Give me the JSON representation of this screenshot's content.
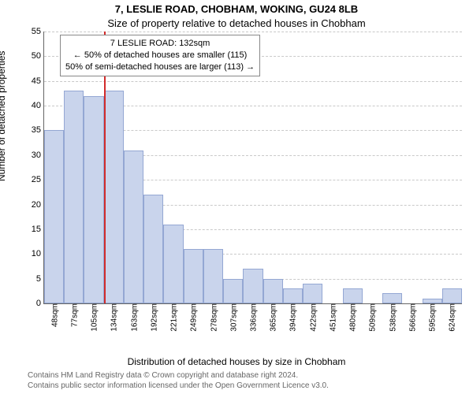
{
  "header": {
    "title_line1": "7, LESLIE ROAD, CHOBHAM, WOKING, GU24 8LB",
    "title_line2": "Size of property relative to detached houses in Chobham"
  },
  "ylabel": "Number of detached properties",
  "xlabel": "Distribution of detached houses by size in Chobham",
  "chart": {
    "type": "histogram",
    "ylim_min": 0,
    "ylim_max": 55,
    "ytick_step": 5,
    "bar_fill": "#c9d4ec",
    "bar_stroke": "#94a7d3",
    "background_color": "#ffffff",
    "grid_color": "#c9c9c9",
    "bar_width_ratio": 1.0,
    "categories": [
      "48sqm",
      "77sqm",
      "105sqm",
      "134sqm",
      "163sqm",
      "192sqm",
      "221sqm",
      "249sqm",
      "278sqm",
      "307sqm",
      "336sqm",
      "365sqm",
      "394sqm",
      "422sqm",
      "451sqm",
      "480sqm",
      "509sqm",
      "538sqm",
      "566sqm",
      "595sqm",
      "624sqm"
    ],
    "values": [
      35,
      43,
      42,
      43,
      31,
      22,
      16,
      11,
      11,
      5,
      7,
      5,
      3,
      4,
      0,
      3,
      0,
      2,
      0,
      1,
      3
    ]
  },
  "marker": {
    "color": "#d22b2b",
    "label_sqm": "134sqm"
  },
  "annotation": {
    "line1": "7 LESLIE ROAD: 132sqm",
    "line2": "← 50% of detached houses are smaller (115)",
    "line3": "50% of semi-detached houses are larger (113) →",
    "border_color": "#888888",
    "bg_color": "#ffffff"
  },
  "footer": {
    "line1": "Contains HM Land Registry data © Crown copyright and database right 2024.",
    "line2": "Contains public sector information licensed under the Open Government Licence v3.0."
  }
}
